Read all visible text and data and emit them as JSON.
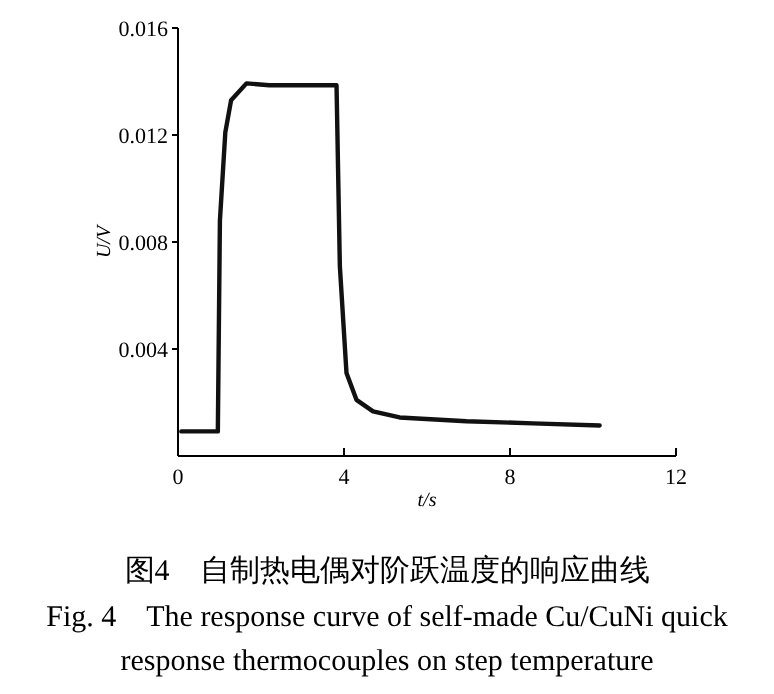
{
  "chart_data": {
    "type": "line",
    "title": "图4　自制热电偶对阶跃温度的响应曲线",
    "subtitle": "Fig. 4　The response curve of self-made Cu/CuNi quick response thermocouples on step temperature",
    "xlabel": "t/s",
    "ylabel": "U/V",
    "x": [
      0.08,
      0.96,
      1.01,
      1.14,
      1.28,
      1.65,
      2.2,
      3.0,
      3.82,
      3.9,
      4.06,
      4.3,
      4.7,
      5.34,
      6.95,
      8.55,
      10.16
    ],
    "series": [
      {
        "color": "#111111",
        "values": [
          0.00092,
          0.00092,
          0.0088,
          0.0121,
          0.0133,
          0.01393,
          0.01386,
          0.01386,
          0.01386,
          0.0071,
          0.0031,
          0.0021,
          0.00167,
          0.00144,
          0.0013,
          0.00122,
          0.00114
        ]
      }
    ],
    "xlim": [
      0,
      12
    ],
    "ylim": [
      0,
      0.016
    ],
    "xticks": [
      0,
      4,
      8,
      12
    ],
    "yticks": [
      0.004,
      0.008,
      0.012,
      0.016
    ],
    "grid": false,
    "marker": "none",
    "line_style": "solid"
  }
}
